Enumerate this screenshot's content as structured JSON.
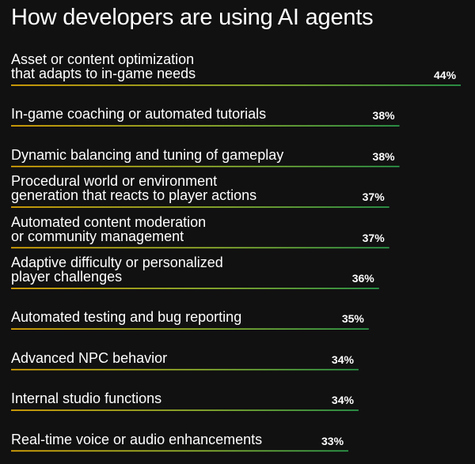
{
  "chart_data": {
    "type": "bar",
    "title": "How developers are using AI agents",
    "categories": [
      "Asset or content optimization\nthat adapts to in-game needs",
      "In-game coaching or automated tutorials",
      "Dynamic balancing and tuning of gameplay",
      "Procedural world or environment\ngeneration that reacts to player actions",
      "Automated content moderation\nor community management",
      "Adaptive difficulty or personalized\nplayer challenges",
      "Automated testing and bug reporting",
      "Advanced NPC behavior",
      "Internal studio functions",
      "Real-time voice or audio enhancements"
    ],
    "values": [
      44,
      38,
      38,
      37,
      37,
      36,
      35,
      34,
      34,
      33
    ],
    "value_labels": [
      "44%",
      "38%",
      "38%",
      "37%",
      "37%",
      "36%",
      "35%",
      "34%",
      "34%",
      "33%"
    ],
    "orientation": "horizontal",
    "legend": "none",
    "grid": false,
    "colors": {
      "background": "#111111",
      "text": "#ffffff",
      "bar_start": "#f2b705",
      "bar_mid": "#9bc232",
      "bar_end": "#2fa84f"
    }
  }
}
